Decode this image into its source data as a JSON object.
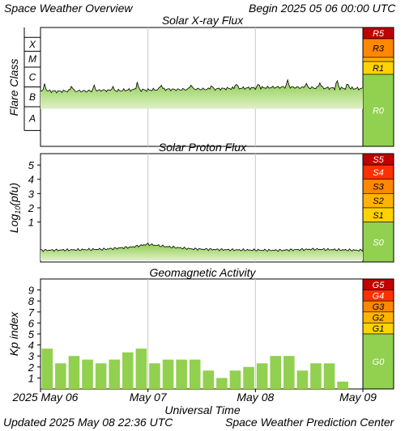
{
  "header": {
    "title": "Space Weather Overview",
    "begin": "Begin 2025 05 06 00:00 UTC"
  },
  "footer": {
    "updated": "Updated 2025 May 08 22:36 UTC",
    "source": "Space Weather Prediction Center"
  },
  "colors": {
    "green_light": "#dff0c6",
    "green_dark": "#8ccd4e",
    "scale_green": "#92d050",
    "yellow": "#ffd200",
    "amber": "#ffb400",
    "orange": "#ff8800",
    "red": "#ff3000",
    "dark_red": "#c00000"
  },
  "chart_data": [
    {
      "type": "area",
      "title": "Solar X-ray Flux",
      "ylabel": "Flare Class",
      "flare_classes": [
        "X",
        "M",
        "C",
        "B",
        "A"
      ],
      "scale": [
        {
          "label": "R5",
          "color": "#c00000",
          "level": 5
        },
        {
          "label": "R3",
          "color": "#ff8800",
          "level": 3
        },
        {
          "label": "R1",
          "color": "#ffd200",
          "level": 1
        },
        {
          "label": "R0",
          "color": "#92d050",
          "level": 0
        }
      ],
      "x_ticks": [
        "2025 May 06",
        "May 07",
        "May 08",
        "May 09"
      ],
      "x_range_days": [
        0,
        3
      ],
      "baseline_level": "C",
      "baseline_samples": [
        0.58,
        0.5,
        0.55,
        0.52,
        0.6,
        0.57,
        0.65,
        0.62,
        0.7,
        0.66,
        0.72,
        0.7,
        0.76,
        0.8,
        0.82,
        0.86,
        0.9,
        0.85,
        0.82,
        0.8,
        0.78,
        0.75
      ],
      "spikes": [
        {
          "day": 0.04,
          "height": 0.8
        },
        {
          "day": 0.29,
          "height": 0.7
        },
        {
          "day": 0.5,
          "height": 0.6
        },
        {
          "day": 0.67,
          "height": 0.5
        },
        {
          "day": 0.9,
          "height": 0.9
        },
        {
          "day": 1.12,
          "height": 0.7
        },
        {
          "day": 1.4,
          "height": 0.6
        },
        {
          "day": 1.59,
          "height": 0.5
        },
        {
          "day": 1.82,
          "height": 0.7
        },
        {
          "day": 2.03,
          "height": 0.5
        },
        {
          "day": 2.3,
          "height": 0.8
        },
        {
          "day": 2.47,
          "height": 0.6
        },
        {
          "day": 2.6,
          "height": 0.7
        },
        {
          "day": 2.76,
          "height": 1.0
        },
        {
          "day": 2.86,
          "height": 0.6
        }
      ]
    },
    {
      "type": "area",
      "title": "Solar Proton Flux",
      "ylabel_main": "Log",
      "ylabel_sub": "10",
      "ylabel_tail": "(pfu)",
      "y_ticks": [
        1,
        2,
        3,
        4,
        5
      ],
      "y_tick_labels": [
        "1",
        "2",
        "3",
        "4",
        "5"
      ],
      "ylim": [
        -1.8,
        5.8
      ],
      "scale": [
        {
          "label": "S5",
          "color": "#c00000",
          "min": 5
        },
        {
          "label": "S4",
          "color": "#ff3000",
          "min": 4
        },
        {
          "label": "S3",
          "color": "#ff8800",
          "min": 3
        },
        {
          "label": "S2",
          "color": "#ffb400",
          "min": 2
        },
        {
          "label": "S1",
          "color": "#ffd200",
          "min": 1
        },
        {
          "label": "S0",
          "color": "#92d050",
          "min": -1.8
        }
      ],
      "x_ticks": [
        "2025 May 06",
        "May 07",
        "May 08",
        "May 09"
      ],
      "x_range_days": [
        0,
        3
      ],
      "log_flux": [
        {
          "day": 0.0,
          "value": -0.98
        },
        {
          "day": 0.3,
          "value": -0.95
        },
        {
          "day": 0.6,
          "value": -0.9
        },
        {
          "day": 0.85,
          "value": -0.75
        },
        {
          "day": 1.0,
          "value": -0.55
        },
        {
          "day": 1.15,
          "value": -0.7
        },
        {
          "day": 1.4,
          "value": -0.88
        },
        {
          "day": 1.8,
          "value": -0.95
        },
        {
          "day": 2.2,
          "value": -0.98
        },
        {
          "day": 2.55,
          "value": -0.9
        },
        {
          "day": 2.8,
          "value": -0.95
        },
        {
          "day": 3.0,
          "value": -0.98
        }
      ]
    },
    {
      "type": "bar",
      "title": "Geomagnetic Activity",
      "ylabel": "Kp index",
      "y_ticks": [
        1,
        2,
        3,
        4,
        5,
        6,
        7,
        8,
        9
      ],
      "y_tick_labels": [
        "1",
        "2",
        "3",
        "4",
        "5",
        "6",
        "7",
        "8",
        "9"
      ],
      "ylim": [
        0,
        10
      ],
      "scale": [
        {
          "label": "G5",
          "color": "#c00000",
          "min": 9
        },
        {
          "label": "G4",
          "color": "#ff3000",
          "min": 8
        },
        {
          "label": "G3",
          "color": "#ff8800",
          "min": 7
        },
        {
          "label": "G2",
          "color": "#ffb400",
          "min": 6
        },
        {
          "label": "G1",
          "color": "#ffd200",
          "min": 5
        },
        {
          "label": "G0",
          "color": "#92d050",
          "min": 0
        }
      ],
      "x_ticks": [
        "2025 May 06",
        "May 07",
        "May 08",
        "May 09"
      ],
      "xlabel": "Universal Time",
      "kp_values": [
        3.67,
        2.33,
        3.0,
        2.67,
        2.33,
        2.67,
        3.33,
        3.67,
        2.33,
        2.67,
        2.67,
        2.67,
        1.67,
        1.0,
        1.67,
        2.0,
        2.33,
        3.0,
        3.0,
        1.67,
        2.33,
        2.33,
        0.67
      ]
    }
  ]
}
